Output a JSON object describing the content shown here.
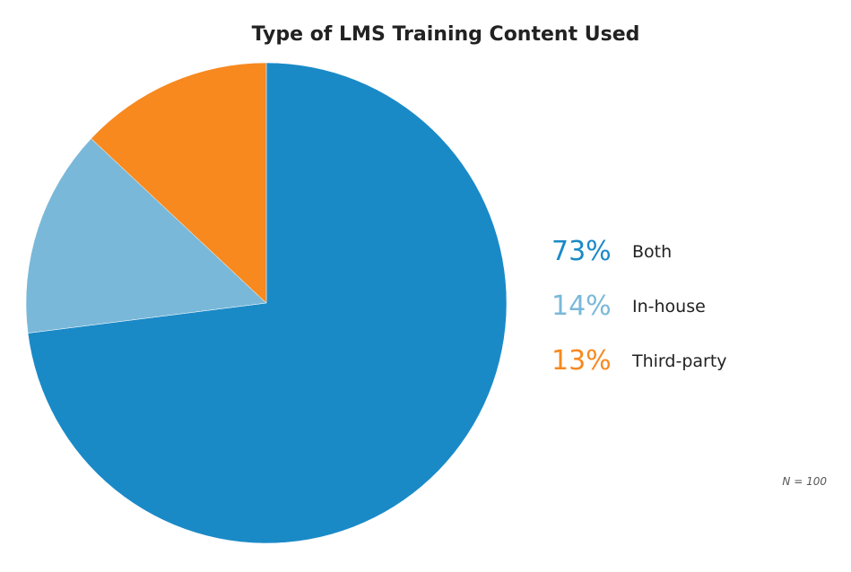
{
  "chart_data": {
    "type": "pie",
    "title": "Type of LMS Training Content Used",
    "slices": [
      {
        "label": "Both",
        "value": 73,
        "display": "73%",
        "color": "#1a8ac7"
      },
      {
        "label": "In-house",
        "value": 14,
        "display": "14%",
        "color": "#7ab8d9"
      },
      {
        "label": "Third-party",
        "value": 13,
        "display": "13%",
        "color": "#f7891f"
      }
    ],
    "note": "N = 100",
    "legend_position": "right"
  }
}
